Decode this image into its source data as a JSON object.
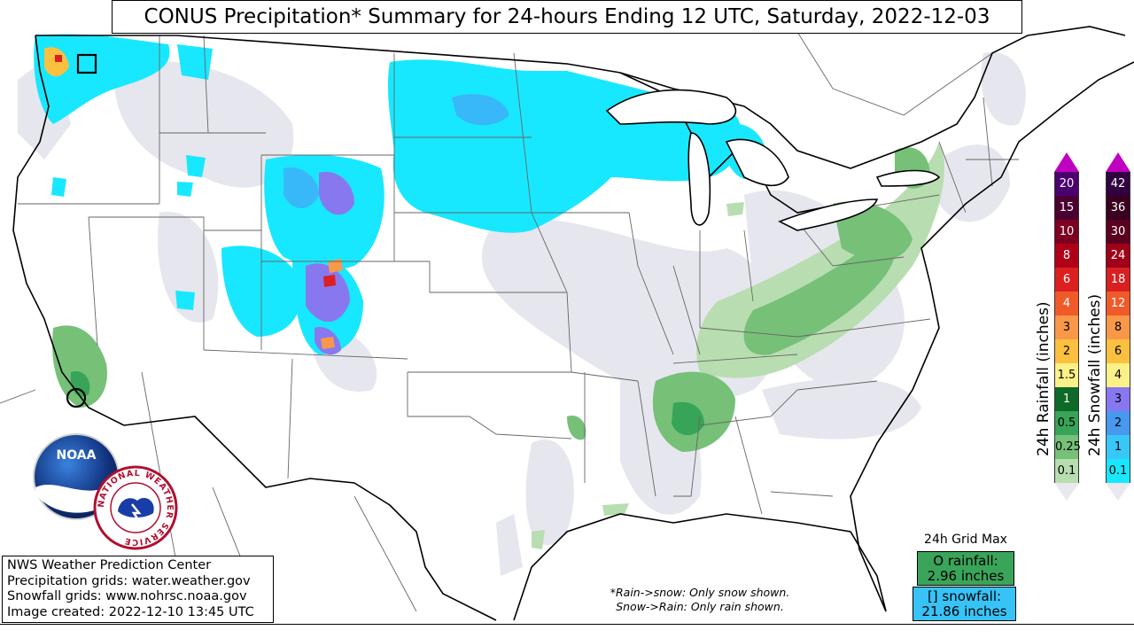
{
  "title": "CONUS Precipitation* Summary for 24-hours Ending 12 UTC, Saturday, 2022-12-03",
  "info": {
    "line1": "NWS Weather Prediction Center",
    "line2": "Precipitation grids: water.weather.gov",
    "line3": "Snowfall grids: www.nohrsc.noaa.gov",
    "line4": "Image created: 2022-12-10 13:45 UTC"
  },
  "footnote": {
    "line1": "*Rain->snow: Only snow shown.",
    "line2": "Snow->Rain: Only rain shown."
  },
  "grid_max": {
    "title": "24h Grid Max",
    "rain_line1": "O rainfall:",
    "rain_line2": "2.96 inches",
    "snow_line1": "[] snowfall:",
    "snow_line2": "21.86 inches"
  },
  "rain_scale": {
    "label": "24h Rainfall (inches)",
    "arrow_top_color": "#c000c0",
    "arrow_bottom_color": "#e8e8ee",
    "levels": [
      {
        "value": "20",
        "color": "#4b0070"
      },
      {
        "value": "15",
        "color": "#4a0030"
      },
      {
        "value": "10",
        "color": "#7d0020"
      },
      {
        "value": "8",
        "color": "#b00018"
      },
      {
        "value": "6",
        "color": "#dc2020"
      },
      {
        "value": "4",
        "color": "#f05a28"
      },
      {
        "value": "3",
        "color": "#f89848"
      },
      {
        "value": "2",
        "color": "#fcc040"
      },
      {
        "value": "1.5",
        "color": "#fcf088"
      },
      {
        "value": "1",
        "color": "#0e6a28"
      },
      {
        "value": "0.5",
        "color": "#37a457"
      },
      {
        "value": "0.25",
        "color": "#76c078"
      },
      {
        "value": "0.1",
        "color": "#b8ddb0"
      }
    ]
  },
  "snow_scale": {
    "label": "24h Snowfall (inches)",
    "arrow_top_color": "#c000c0",
    "arrow_bottom_color": "#e8e8ee",
    "levels": [
      {
        "value": "42",
        "color": "#300040"
      },
      {
        "value": "36",
        "color": "#3a0020"
      },
      {
        "value": "30",
        "color": "#5a0020"
      },
      {
        "value": "24",
        "color": "#a00018"
      },
      {
        "value": "18",
        "color": "#d82020"
      },
      {
        "value": "12",
        "color": "#f05a28"
      },
      {
        "value": "8",
        "color": "#f89848"
      },
      {
        "value": "6",
        "color": "#fcc040"
      },
      {
        "value": "4",
        "color": "#fcf088"
      },
      {
        "value": "3",
        "color": "#8878f0"
      },
      {
        "value": "2",
        "color": "#4898f0"
      },
      {
        "value": "1",
        "color": "#38c8f8"
      },
      {
        "value": "0.1",
        "color": "#18e8ff"
      }
    ]
  },
  "logos": {
    "noaa_text": "NOAA",
    "nws_ring_text": "NATIONAL WEATHER SERVICE"
  },
  "colors": {
    "light_precip": "#e6e6ee",
    "snow_light": "#18e8ff",
    "snow_mid": "#38b8f8",
    "snow_purple": "#8878f0",
    "rain_light": "#b8ddb0",
    "rain_mid": "#76c078",
    "rain_dark": "#37a457"
  }
}
